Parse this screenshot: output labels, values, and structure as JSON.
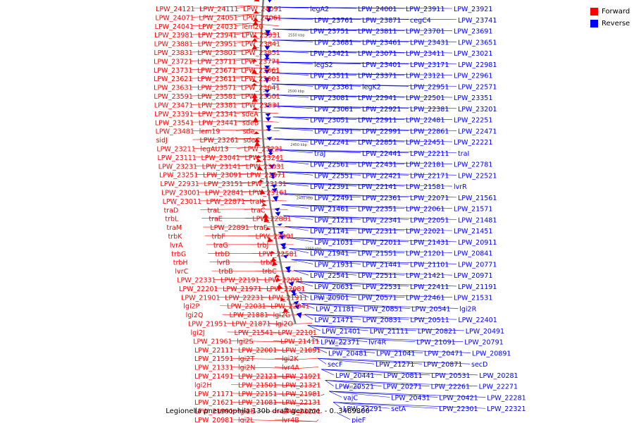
{
  "legend": {
    "forward_label": "Forward",
    "reverse_label": "Reverse",
    "forward_color": "#ff0000",
    "reverse_color": "#0000ff"
  },
  "caption": "Legionella pneumophila 130b draft genome. - 0..3489800",
  "scale_labels": [
    "2550 kbp",
    "2500 kbp",
    "2450 kbp",
    "2400 kbp",
    "2350 kbp",
    "2300 kbp",
    "2250 kbp",
    "2200 kbp"
  ],
  "labels_forward": [
    "LPW_24121",
    "LPW_24111",
    "LPW_24091",
    "LPW_24071",
    "LPW_24051",
    "LPW_24061",
    "LPW_24041",
    "LPW_24031",
    "lem20",
    "LPW_23981",
    "LPW_23941",
    "LPW_23931",
    "LPW_23881",
    "LPW_23951",
    "LPW_23841",
    "LPW_23831",
    "LPW_23801",
    "LPW_23851",
    "LPW_23721",
    "LPW_23711",
    "LPW_23771",
    "LPW_23731",
    "LPW_23671",
    "LPW_23661",
    "LPW_23621",
    "LPW_23611",
    "LPW_23601",
    "LPW_23631",
    "LPW_23571",
    "LPW_23641",
    "LPW_23591",
    "LPW_23581",
    "LPW_23501",
    "LPW_23471",
    "LPW_23381",
    "LPW_23531",
    "LPW_23391",
    "LPW_23341",
    "sdeA",
    "LPW_23541",
    "LPW_23441",
    "sdeB",
    "LPW_23481",
    "lem19",
    "sde",
    "sidJ",
    "LPW_23261",
    "sdeC",
    "LPW_23211",
    "legAU13",
    "LPW_23221",
    "LPW_23111",
    "LPW_23041",
    "LPW_23241",
    "LPW_23231",
    "LPW_23141",
    "LPW_23031",
    "LPW_23251",
    "LPW_23091",
    "LPW_22971",
    "LPW_22931",
    "LPW_23151",
    "LPW_23131",
    "LPW_23001",
    "LPW_22841",
    "LPW_23161",
    "LPW_23011",
    "LPW_22871",
    "traK",
    "traD",
    "traL",
    "traC",
    "trbL",
    "traE",
    "LPW_22881",
    "traM",
    "LPW_22891",
    "traF",
    "trbK",
    "trbF",
    "LPW_22901",
    "lvrA",
    "traG",
    "trbJ",
    "trbG",
    "trbD",
    "LPW_22581",
    "trbH",
    "lvrB",
    "trbI",
    "lvrC",
    "trbB",
    "trbC",
    "LPW_22331",
    "LPW_22191",
    "LPW_22091",
    "LPW_22201",
    "LPW_21971",
    "LPW_22081",
    "LPW_21901",
    "LPW_22231",
    "LPW_21911",
    "lgi2P",
    "LPW_22031",
    "LPW_22041",
    "lgi2Q",
    "LPW_21881",
    "lgi2G",
    "LPW_21951",
    "LPW_21871",
    "lgi2O",
    "lgi2J",
    "LPW_21541",
    "LPW_22101",
    "LPW_21961",
    "lgi2S",
    "LPW_21411",
    "LPW_22111",
    "LPW_22001",
    "LPW_21891",
    "LPW_21591",
    "lgi2T",
    "lgi2K",
    "LPW_21331",
    "lgi2N",
    "lvr4A",
    "LPW_21491",
    "LPW_22121",
    "LPW_21921",
    "lgi2H",
    "LPW_21501",
    "LPW_21321",
    "LPW_21171",
    "LPW_22151",
    "LPW_21981",
    "LPW_21621",
    "LPW_21081",
    "LPW_22131",
    "LPW_21991",
    "lgi2E",
    "LPW_21221",
    "LPW_20981",
    "lgi2L",
    "lvr4B"
  ],
  "labels_reverse": [
    "legA2",
    "LPW_24001",
    "LPW_23911",
    "LPW_23921",
    "LPW_23761",
    "LPW_23871",
    "cegC4",
    "LPW_23741",
    "LPW_23751",
    "LPW_23811",
    "LPW_23701",
    "LPW_23691",
    "LPW_23681",
    "LPW_23461",
    "LPW_23431",
    "LPW_23651",
    "LPW_23421",
    "LPW_23071",
    "LPW_23411",
    "LPW_23021",
    "legS2",
    "LPW_23401",
    "LPW_23171",
    "LPW_22981",
    "LPW_23511",
    "LPW_23371",
    "LPW_23121",
    "LPW_22961",
    "LPW_23361",
    "legK2",
    "LPW_22951",
    "LPW_22571",
    "LPW_23081",
    "LPW_22941",
    "LPW_22501",
    "LPW_23351",
    "LPW_23061",
    "LPW_22921",
    "LPW_22381",
    "LPW_23201",
    "LPW_23051",
    "LPW_22911",
    "LPW_22481",
    "LPW_22251",
    "LPW_23191",
    "LPW_22991",
    "LPW_22861",
    "LPW_22471",
    "LPW_22241",
    "LPW_22851",
    "LPW_22451",
    "LPW_22221",
    "traJ",
    "LPW_22441",
    "LPW_22211",
    "traI",
    "LPW_22561",
    "LPW_22431",
    "LPW_22181",
    "LPW_22781",
    "LPW_22551",
    "LPW_22421",
    "LPW_22171",
    "LPW_22521",
    "LPW_22391",
    "LPW_22141",
    "LPW_21581",
    "lvrR",
    "LPW_22491",
    "LPW_22361",
    "LPW_22071",
    "LPW_21561",
    "LPW_21461",
    "LPW_22351",
    "LPW_22061",
    "LPW_21571",
    "LPW_21211",
    "LPW_22341",
    "LPW_22051",
    "LPW_21481",
    "LPW_21141",
    "LPW_22311",
    "LPW_22021",
    "LPW_21451",
    "LPW_21031",
    "LPW_22011",
    "LPW_21431",
    "LPW_20911",
    "LPW_21941",
    "LPW_21551",
    "LPW_21201",
    "LPW_20841",
    "LPW_21931",
    "LPW_21441",
    "LPW_21101",
    "LPW_20771",
    "LPW_22541",
    "LPW_22511",
    "LPW_21421",
    "LPW_20971",
    "LPW_20631",
    "LPW_22531",
    "LPW_22411",
    "LPW_21191",
    "LPW_20901",
    "LPW_20571",
    "LPW_22461",
    "LPW_21531",
    "LPW_21181",
    "LPW_20851",
    "LPW_20541",
    "lgi2R",
    "LPW_21471",
    "LPW_20831",
    "LPW_20511",
    "LPW_22401",
    "LPW_21401",
    "LPW_21111",
    "LPW_20821",
    "LPW_20491",
    "LPW_22371",
    "lvr4R",
    "LPW_21091",
    "LPW_20791",
    "LPW_20481",
    "LPW_21041",
    "LPW_20471",
    "LPW_20891",
    "secF",
    "LPW_21271",
    "LPW_20871",
    "secD",
    "LPW_20441",
    "LPW_20811",
    "LPW_20531",
    "LPW_20281",
    "LPW_20521",
    "LPW_20271",
    "LPW_22261",
    "LPW_22271",
    "vajC",
    "LPW_20431",
    "LPW_20421",
    "LPW_22281",
    "LPW_22291",
    "setA",
    "LPW_22301",
    "LPW_22321",
    "pieF"
  ]
}
